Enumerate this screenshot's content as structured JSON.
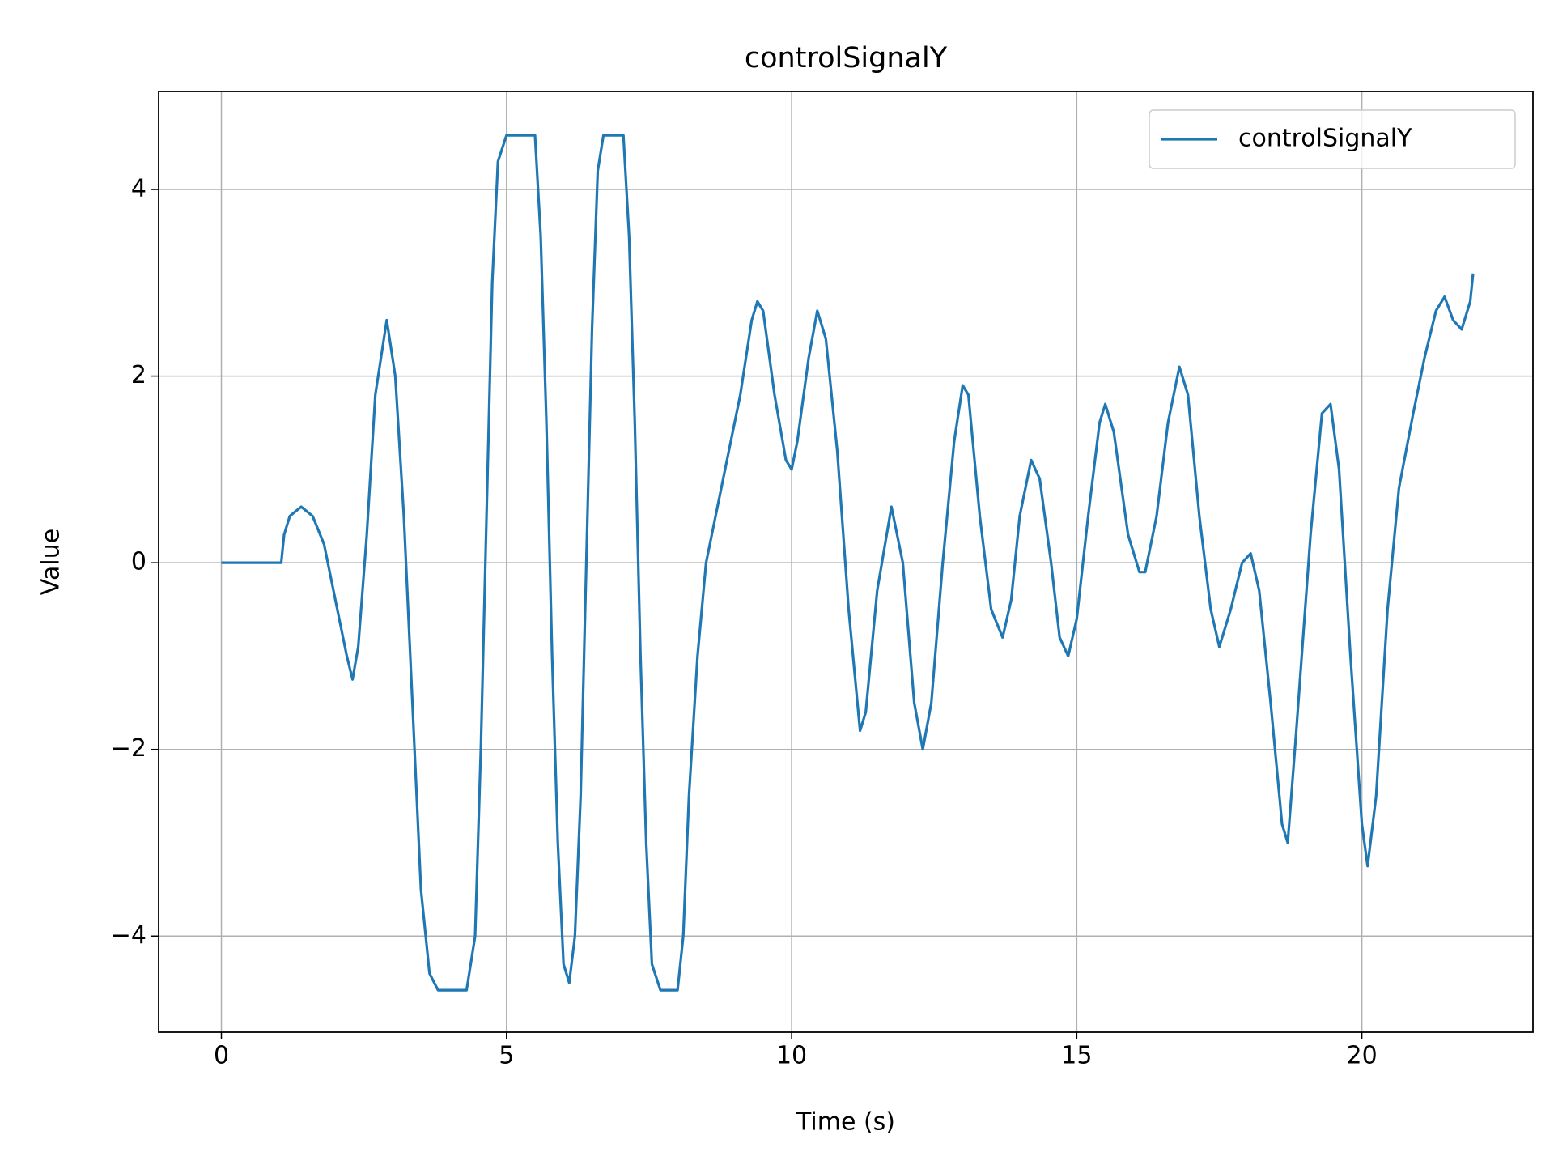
{
  "chart_data": {
    "type": "line",
    "title": "controlSignalY",
    "x_label": "Time (s)",
    "y_label": "Value",
    "xlim": [
      -1.1,
      23.0
    ],
    "ylim": [
      -5.03,
      5.05
    ],
    "xticks": [
      0,
      5,
      10,
      15,
      20
    ],
    "yticks": [
      {
        "value": -4,
        "label": "−4"
      },
      {
        "value": -2,
        "label": "−2"
      },
      0,
      2,
      4
    ],
    "grid": true,
    "legend": "upper right",
    "x": [
      0,
      1.05,
      1.1,
      1.2,
      1.4,
      1.6,
      1.8,
      2.0,
      2.2,
      2.3,
      2.4,
      2.55,
      2.7,
      2.9,
      3.05,
      3.2,
      3.35,
      3.5,
      3.65,
      3.8,
      4.3,
      4.45,
      4.55,
      4.65,
      4.75,
      4.85,
      5.0,
      5.5,
      5.6,
      5.7,
      5.8,
      5.9,
      6.0,
      6.1,
      6.2,
      6.3,
      6.4,
      6.5,
      6.6,
      6.7,
      7.05,
      7.15,
      7.25,
      7.35,
      7.45,
      7.55,
      7.7,
      8.0,
      8.1,
      8.2,
      8.35,
      8.5,
      8.7,
      8.9,
      9.1,
      9.3,
      9.4,
      9.5,
      9.7,
      9.9,
      10.0,
      10.1,
      10.3,
      10.45,
      10.6,
      10.8,
      11.0,
      11.2,
      11.3,
      11.5,
      11.75,
      11.95,
      12.15,
      12.3,
      12.45,
      12.65,
      12.85,
      13.0,
      13.1,
      13.3,
      13.5,
      13.7,
      13.85,
      14.0,
      14.2,
      14.35,
      14.55,
      14.7,
      14.85,
      15.0,
      15.2,
      15.4,
      15.5,
      15.65,
      15.9,
      16.1,
      16.2,
      16.4,
      16.6,
      16.8,
      16.95,
      17.15,
      17.35,
      17.5,
      17.7,
      17.9,
      18.05,
      18.2,
      18.4,
      18.6,
      18.7,
      18.85,
      19.1,
      19.3,
      19.45,
      19.6,
      19.8,
      20.0,
      20.1,
      20.25,
      20.45,
      20.65,
      20.9,
      21.1,
      21.3,
      21.45,
      21.6,
      21.75,
      21.9,
      21.95
    ],
    "series": [
      {
        "name": "controlSignalY",
        "color": "#1f77b4",
        "values": [
          0,
          0,
          0.3,
          0.5,
          0.6,
          0.5,
          0.2,
          -0.4,
          -1.0,
          -1.25,
          -0.9,
          0.3,
          1.8,
          2.6,
          2.0,
          0.5,
          -1.5,
          -3.5,
          -4.4,
          -4.58,
          -4.58,
          -4.0,
          -2.0,
          0.5,
          3.0,
          4.3,
          4.58,
          4.58,
          3.5,
          1.5,
          -1.0,
          -3.0,
          -4.3,
          -4.5,
          -4.0,
          -2.5,
          0.0,
          2.5,
          4.2,
          4.58,
          4.58,
          3.5,
          1.5,
          -1.0,
          -3.0,
          -4.3,
          -4.58,
          -4.58,
          -4.0,
          -2.5,
          -1.0,
          0.0,
          0.6,
          1.2,
          1.8,
          2.6,
          2.8,
          2.7,
          1.8,
          1.1,
          1.0,
          1.3,
          2.2,
          2.7,
          2.4,
          1.2,
          -0.5,
          -1.8,
          -1.6,
          -0.3,
          0.6,
          0.0,
          -1.5,
          -2.0,
          -1.5,
          0.0,
          1.3,
          1.9,
          1.8,
          0.5,
          -0.5,
          -0.8,
          -0.4,
          0.5,
          1.1,
          0.9,
          0.0,
          -0.8,
          -1.0,
          -0.6,
          0.5,
          1.5,
          1.7,
          1.4,
          0.3,
          -0.1,
          -0.1,
          0.5,
          1.5,
          2.1,
          1.8,
          0.5,
          -0.5,
          -0.9,
          -0.5,
          0.0,
          0.1,
          -0.3,
          -1.5,
          -2.8,
          -3.0,
          -1.8,
          0.3,
          1.6,
          1.7,
          1.0,
          -1.0,
          -2.8,
          -3.25,
          -2.5,
          -0.5,
          0.8,
          1.6,
          2.2,
          2.7,
          2.85,
          2.6,
          2.5,
          2.8,
          3.1
        ]
      }
    ]
  }
}
